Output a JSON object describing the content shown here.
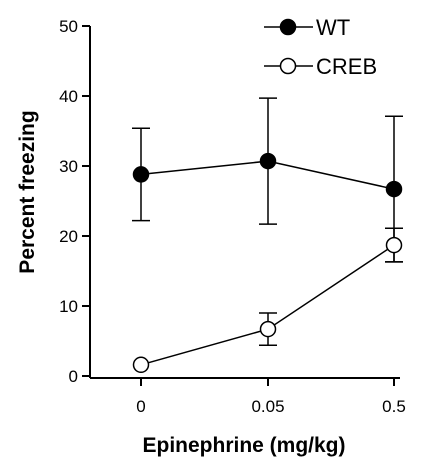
{
  "chart_data": {
    "type": "line",
    "title": "",
    "xlabel": "Epinephrine (mg/kg)",
    "ylabel": "Percent freezing",
    "categories": [
      "0",
      "0.05",
      "0.5"
    ],
    "ylim": [
      0,
      50
    ],
    "yticks": [
      "0",
      "10",
      "20",
      "30",
      "40",
      "50"
    ],
    "grid": false,
    "legend_position": "top-right",
    "series": [
      {
        "name": "WT",
        "marker": "filled-circle",
        "color": "#000000",
        "values": [
          28.8,
          30.7,
          26.7
        ],
        "error": [
          6.6,
          9.0,
          10.4
        ]
      },
      {
        "name": "CREB",
        "marker": "open-circle",
        "color": "#000000",
        "values": [
          1.6,
          6.7,
          18.7
        ],
        "error": [
          0,
          2.3,
          2.4
        ]
      }
    ]
  }
}
